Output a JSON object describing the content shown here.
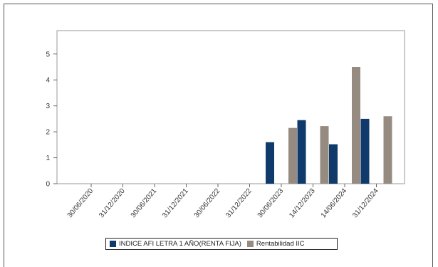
{
  "chart_data": {
    "type": "bar",
    "title": "",
    "xlabel": "",
    "ylabel": "",
    "categories": [
      "30/06/2020",
      "31/12/2020",
      "30/06/2021",
      "31/12/2021",
      "30/06/2022",
      "31/12/2022",
      "30/06/2023",
      "14/12/2023",
      "14/06/2024",
      "31/12/2024"
    ],
    "series": [
      {
        "name": "INDICE AFI LETRA 1 AÑO(RENTA FIJA)",
        "color": "#0f3a6b",
        "values": [
          null,
          null,
          null,
          null,
          null,
          null,
          1.6,
          2.45,
          1.52,
          2.5
        ]
      },
      {
        "name": "Rentabilidad IIC",
        "color": "#968b80",
        "values": [
          null,
          null,
          null,
          null,
          null,
          null,
          2.15,
          2.22,
          4.5,
          2.6
        ]
      }
    ],
    "ylim": [
      0,
      5.9
    ],
    "yticks": [
      0,
      1,
      2,
      3,
      4,
      5
    ],
    "grid": false,
    "legend_position": "bottom"
  }
}
